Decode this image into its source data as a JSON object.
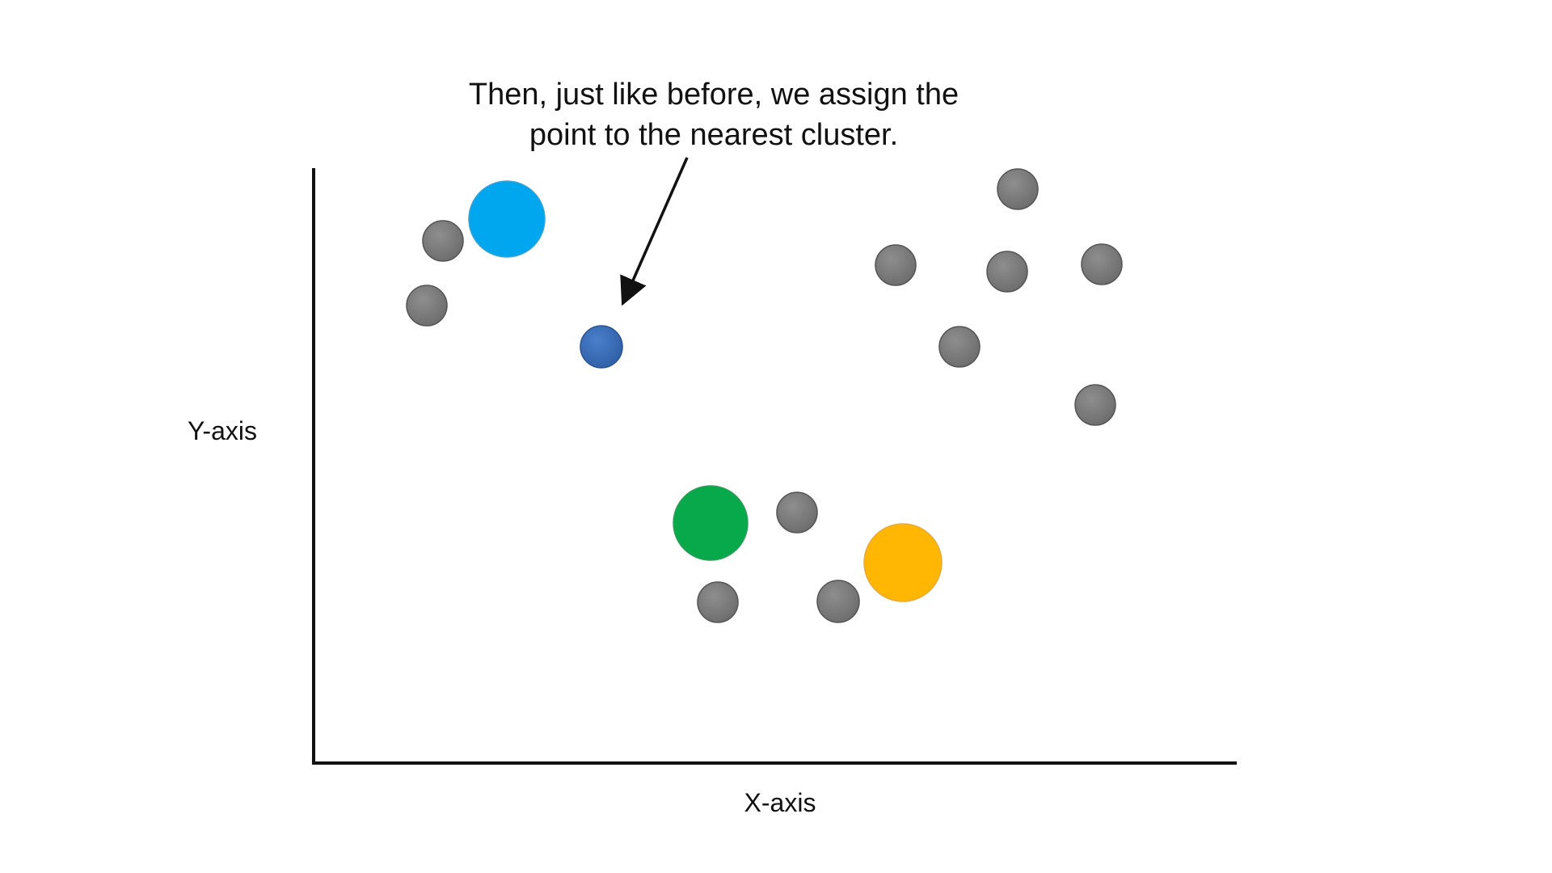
{
  "annotation": {
    "line1": "Then, just like before, we assign the",
    "line2": "point to the nearest cluster."
  },
  "axes": {
    "x_label": "X-axis",
    "y_label": "Y-axis"
  },
  "colors": {
    "data_point": "#7a7a7a",
    "data_point_outline": "#555555",
    "new_point": "#3e70b8",
    "centroid_light_blue": "#00a6ee",
    "centroid_green": "#07a94a",
    "centroid_orange": "#ffb703",
    "axis": "#111111",
    "arrow": "#111111"
  }
}
